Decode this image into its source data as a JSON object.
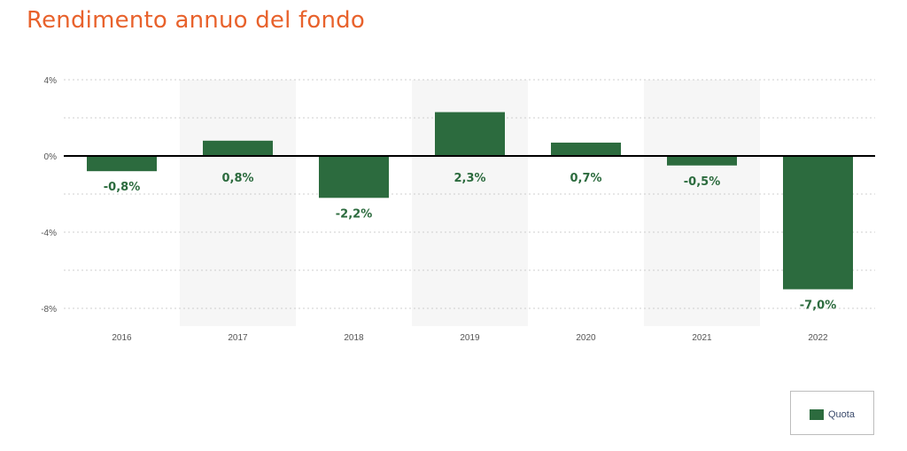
{
  "title": "Rendimento annuo del fondo",
  "colors": {
    "title": "#e8622c",
    "bar": "#2c6b3e",
    "label": "#2c6b3e",
    "band": "#f6f6f6",
    "grid": "#cfcfcf",
    "zero_line": "#000000",
    "tick": "#555555"
  },
  "chart_data": {
    "type": "bar",
    "title": "Rendimento annuo del fondo",
    "categories": [
      "2016",
      "2017",
      "2018",
      "2019",
      "2020",
      "2021",
      "2022"
    ],
    "series": [
      {
        "name": "Quota",
        "values": [
          -0.8,
          0.8,
          -2.2,
          2.3,
          0.7,
          -0.5,
          -7.0
        ],
        "data_labels": [
          "-0,8%",
          "0,8%",
          "-2,2%",
          "2,3%",
          "0,7%",
          "-0,5%",
          "-7,0%"
        ]
      }
    ],
    "ylim": [
      -9,
      4
    ],
    "yticks": [
      4,
      0,
      -4,
      -8
    ],
    "ytick_labels": [
      "4%",
      "0%",
      "-4%",
      "-8%"
    ],
    "grid": true,
    "alternate_bands": true,
    "legend": "bottom-right",
    "xlabel": "",
    "ylabel": ""
  }
}
